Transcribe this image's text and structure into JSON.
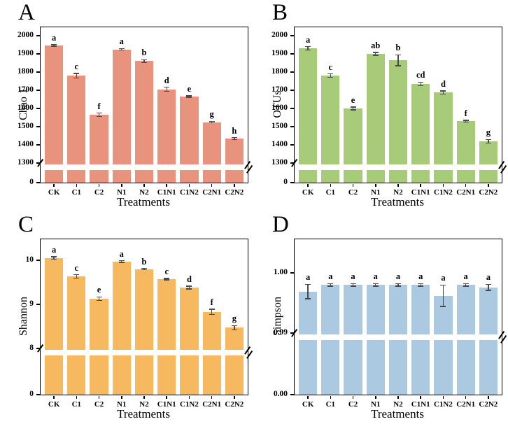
{
  "figure": {
    "background": "#ffffff",
    "frame_color": "#000000",
    "error_bar_color": "#4a4a4a"
  },
  "chart_data": [
    {
      "panel": "A",
      "type": "bar",
      "ylabel": "Chao 1",
      "xlabel": "Treatments",
      "categories": [
        "CK",
        "C1",
        "C2",
        "N1",
        "N2",
        "C1N1",
        "C1N2",
        "C2N1",
        "C2N2"
      ],
      "values": [
        1945,
        1780,
        1565,
        1925,
        1860,
        1705,
        1665,
        1525,
        1435
      ],
      "errors": [
        5,
        12,
        10,
        5,
        8,
        12,
        4,
        5,
        5
      ],
      "sig_letters": [
        "a",
        "c",
        "f",
        "a",
        "b",
        "d",
        "e",
        "g",
        "h"
      ],
      "bar_color": "#E8937E",
      "axis": {
        "broken": true,
        "zero_label": "0",
        "break_value": 1300,
        "upper_ticks": [
          1300,
          1400,
          1500,
          1600,
          1700,
          1800,
          1900,
          2000
        ],
        "upper_tick_labels": [
          "1300",
          "1400",
          "1500",
          "1600",
          "1700",
          "1800",
          "1900",
          "2000"
        ],
        "top_tick_value": 2000,
        "grid": false,
        "legend": "none"
      }
    },
    {
      "panel": "B",
      "type": "bar",
      "ylabel": "OTUs",
      "xlabel": "Treatments",
      "categories": [
        "CK",
        "C1",
        "C2",
        "N1",
        "N2",
        "C1N1",
        "C1N2",
        "C2N1",
        "C2N2"
      ],
      "values": [
        1930,
        1780,
        1600,
        1900,
        1865,
        1735,
        1688,
        1530,
        1420
      ],
      "errors": [
        10,
        10,
        8,
        8,
        30,
        10,
        8,
        5,
        10
      ],
      "sig_letters": [
        "a",
        "c",
        "e",
        "ab",
        "b",
        "cd",
        "d",
        "f",
        "g"
      ],
      "bar_color": "#A8CB7A",
      "axis": {
        "broken": true,
        "zero_label": "0",
        "break_value": 1300,
        "upper_ticks": [
          1300,
          1400,
          1500,
          1600,
          1700,
          1800,
          1900,
          2000
        ],
        "upper_tick_labels": [
          "1300",
          "1400",
          "1500",
          "1600",
          "1700",
          "1800",
          "1900",
          "2000"
        ],
        "top_tick_value": 2000,
        "grid": false,
        "legend": "none"
      }
    },
    {
      "panel": "C",
      "type": "bar",
      "ylabel": "Shannon",
      "xlabel": "Treatments",
      "categories": [
        "CK",
        "C1",
        "C2",
        "N1",
        "N2",
        "C1N1",
        "C1N2",
        "C2N1",
        "C2N2"
      ],
      "values": [
        10.05,
        9.63,
        9.13,
        9.97,
        9.8,
        9.57,
        9.38,
        8.83,
        8.47
      ],
      "errors": [
        0.03,
        0.04,
        0.04,
        0.02,
        0.015,
        0.015,
        0.03,
        0.06,
        0.05
      ],
      "sig_letters": [
        "a",
        "c",
        "e",
        "a",
        "b",
        "c",
        "d",
        "f",
        "g"
      ],
      "bar_color": "#F6B95F",
      "axis": {
        "broken": true,
        "zero_label": "0",
        "break_value": 8,
        "upper_ticks": [
          8,
          9,
          10
        ],
        "upper_tick_labels": [
          "8",
          "9",
          "10"
        ],
        "top_tick_value": 10,
        "grid": false,
        "legend": "none"
      }
    },
    {
      "panel": "D",
      "type": "bar",
      "ylabel": "Simpson",
      "xlabel": "Treatments",
      "categories": [
        "CK",
        "C1",
        "C2",
        "N1",
        "N2",
        "C1N1",
        "C1N2",
        "C2N1",
        "C2N2"
      ],
      "values": [
        0.9969,
        0.998,
        0.998,
        0.998,
        0.998,
        0.998,
        0.9962,
        0.998,
        0.9976
      ],
      "errors": [
        0.0012,
        0.0002,
        0.0002,
        0.0002,
        0.0002,
        0.0002,
        0.0018,
        0.0002,
        0.0005
      ],
      "sig_letters": [
        "a",
        "a",
        "a",
        "a",
        "a",
        "a",
        "a",
        "a",
        "a"
      ],
      "bar_color": "#ABCAE1",
      "axis": {
        "broken": true,
        "zero_label": "0.00",
        "break_value": 0.99,
        "upper_ticks": [
          0.99,
          1.0
        ],
        "upper_tick_labels": [
          "0.99",
          "1.00"
        ],
        "top_tick_value": 1.0,
        "grid": false,
        "legend": "none"
      }
    }
  ]
}
